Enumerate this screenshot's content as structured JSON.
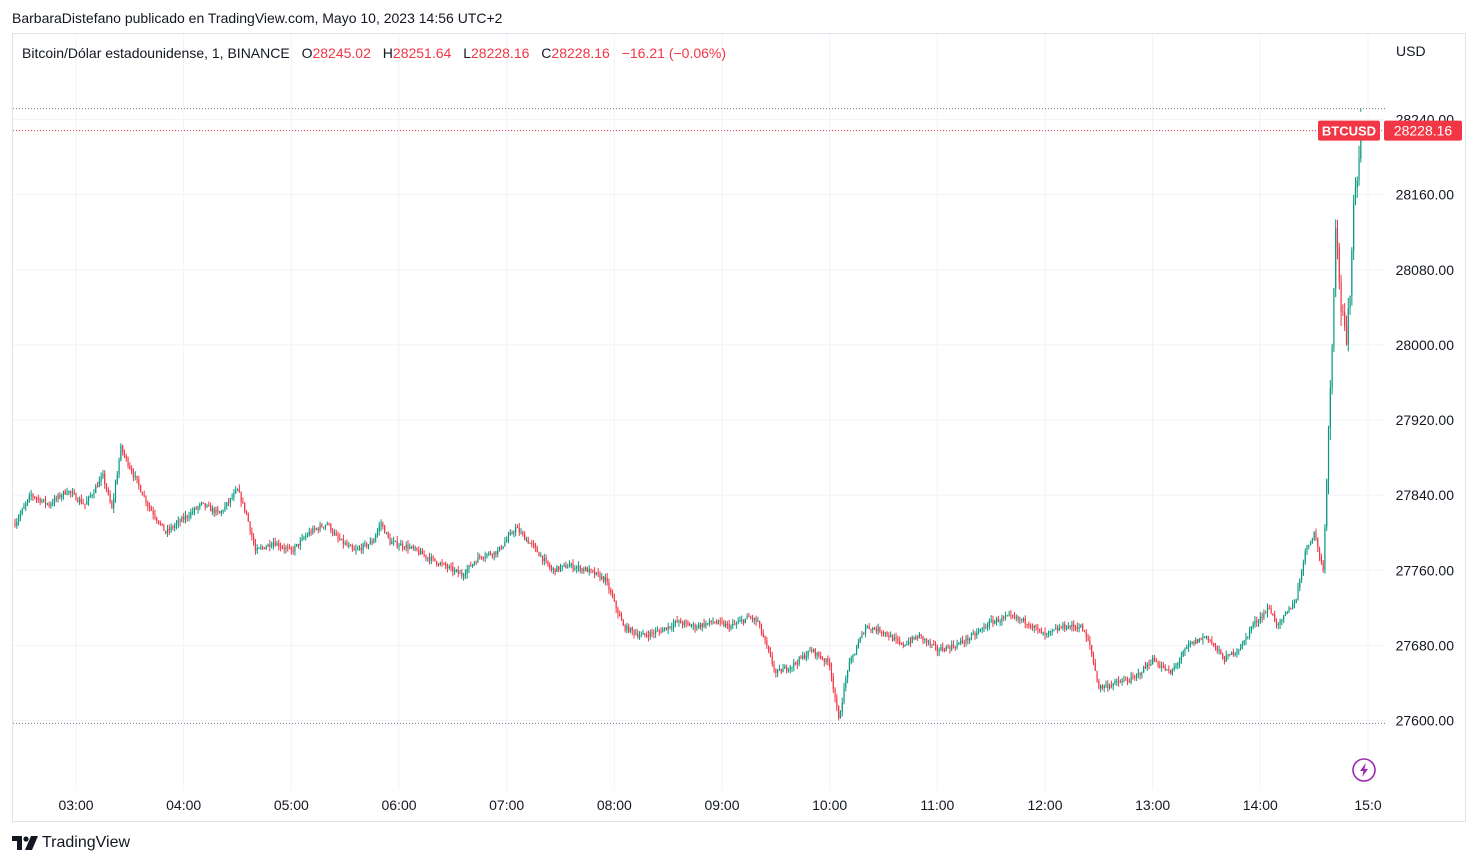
{
  "header": {
    "publisher": "BarbaraDistefano publicado en TradingView.com, Mayo 10, 2023 14:56 UTC+2"
  },
  "legend": {
    "symbol": "Bitcoin/Dólar estadounidense, 1, BINANCE",
    "o_label": "O",
    "o_value": "28245.02",
    "h_label": "H",
    "h_value": "28251.64",
    "l_label": "L",
    "l_value": "28228.16",
    "c_label": "C",
    "c_value": "28228.16",
    "change": "−16.21 (−0.06%)"
  },
  "currency": "USD",
  "price_tag": {
    "symbol": "BTCUSD",
    "value": "28228.16"
  },
  "footer": {
    "brand": "TradingView"
  },
  "colors": {
    "up": "#089981",
    "down": "#f23645",
    "grid": "#f0f3fa",
    "axis_text": "#131722",
    "accent": "#9c27b0"
  },
  "icons": [
    "flash-icon",
    "tradingview-logo-icon"
  ],
  "chart_data": {
    "type": "candlestick",
    "interval": "1 minute",
    "y_ticks": [
      27600,
      27680,
      27760,
      27840,
      27920,
      28000,
      28080,
      28160,
      28240
    ],
    "y_tick_labels": [
      "27600.00",
      "27680.00",
      "27760.00",
      "27840.00",
      "27920.00",
      "28000.00",
      "28080.00",
      "28160.00",
      "28240.00"
    ],
    "ylim": [
      27540,
      28260
    ],
    "x_ticks": [
      "03:00",
      "04:00",
      "05:00",
      "06:00",
      "07:00",
      "08:00",
      "09:00",
      "10:00",
      "11:00",
      "12:00",
      "13:00",
      "14:00",
      "15:0"
    ],
    "x_range": [
      "02:26",
      "15:00"
    ],
    "high_marker": 28251.64,
    "low_marker": 27597,
    "last_price": 28228.16,
    "grid": true,
    "price_path": [
      [
        "02:26",
        27810
      ],
      [
        "02:35",
        27840
      ],
      [
        "02:45",
        27830
      ],
      [
        "02:55",
        27845
      ],
      [
        "03:05",
        27830
      ],
      [
        "03:15",
        27860
      ],
      [
        "03:20",
        27825
      ],
      [
        "03:25",
        27890
      ],
      [
        "03:30",
        27870
      ],
      [
        "03:40",
        27830
      ],
      [
        "03:50",
        27800
      ],
      [
        "04:00",
        27815
      ],
      [
        "04:10",
        27830
      ],
      [
        "04:20",
        27820
      ],
      [
        "04:30",
        27845
      ],
      [
        "04:35",
        27820
      ],
      [
        "04:40",
        27780
      ],
      [
        "04:50",
        27790
      ],
      [
        "05:00",
        27780
      ],
      [
        "05:10",
        27800
      ],
      [
        "05:20",
        27810
      ],
      [
        "05:25",
        27795
      ],
      [
        "05:35",
        27780
      ],
      [
        "05:45",
        27790
      ],
      [
        "05:50",
        27810
      ],
      [
        "05:55",
        27790
      ],
      [
        "06:05",
        27785
      ],
      [
        "06:15",
        27775
      ],
      [
        "06:25",
        27765
      ],
      [
        "06:35",
        27755
      ],
      [
        "06:45",
        27775
      ],
      [
        "06:55",
        27780
      ],
      [
        "07:05",
        27805
      ],
      [
        "07:15",
        27785
      ],
      [
        "07:25",
        27760
      ],
      [
        "07:35",
        27765
      ],
      [
        "07:45",
        27760
      ],
      [
        "07:55",
        27750
      ],
      [
        "08:05",
        27700
      ],
      [
        "08:15",
        27690
      ],
      [
        "08:25",
        27695
      ],
      [
        "08:35",
        27705
      ],
      [
        "08:45",
        27700
      ],
      [
        "08:55",
        27705
      ],
      [
        "09:05",
        27700
      ],
      [
        "09:15",
        27710
      ],
      [
        "09:20",
        27705
      ],
      [
        "09:30",
        27650
      ],
      [
        "09:40",
        27660
      ],
      [
        "09:50",
        27675
      ],
      [
        "10:00",
        27660
      ],
      [
        "10:05",
        27600
      ],
      [
        "10:10",
        27655
      ],
      [
        "10:20",
        27700
      ],
      [
        "10:30",
        27695
      ],
      [
        "10:40",
        27680
      ],
      [
        "10:50",
        27690
      ],
      [
        "11:00",
        27675
      ],
      [
        "11:10",
        27680
      ],
      [
        "11:20",
        27690
      ],
      [
        "11:30",
        27705
      ],
      [
        "11:40",
        27710
      ],
      [
        "11:50",
        27705
      ],
      [
        "12:00",
        27690
      ],
      [
        "12:10",
        27700
      ],
      [
        "12:20",
        27700
      ],
      [
        "12:25",
        27680
      ],
      [
        "12:30",
        27635
      ],
      [
        "12:40",
        27640
      ],
      [
        "12:50",
        27645
      ],
      [
        "13:00",
        27665
      ],
      [
        "13:10",
        27650
      ],
      [
        "13:20",
        27680
      ],
      [
        "13:30",
        27690
      ],
      [
        "13:40",
        27665
      ],
      [
        "13:50",
        27680
      ],
      [
        "13:55",
        27700
      ],
      [
        "14:05",
        27720
      ],
      [
        "14:10",
        27700
      ],
      [
        "14:20",
        27730
      ],
      [
        "14:25",
        27780
      ],
      [
        "14:30",
        27800
      ],
      [
        "14:35",
        27760
      ],
      [
        "14:40",
        28005
      ],
      [
        "14:42",
        28130
      ],
      [
        "14:45",
        28040
      ],
      [
        "14:48",
        28000
      ],
      [
        "14:50",
        28060
      ],
      [
        "14:52",
        28150
      ],
      [
        "14:55",
        28200
      ],
      [
        "14:56",
        28228.16
      ]
    ]
  }
}
